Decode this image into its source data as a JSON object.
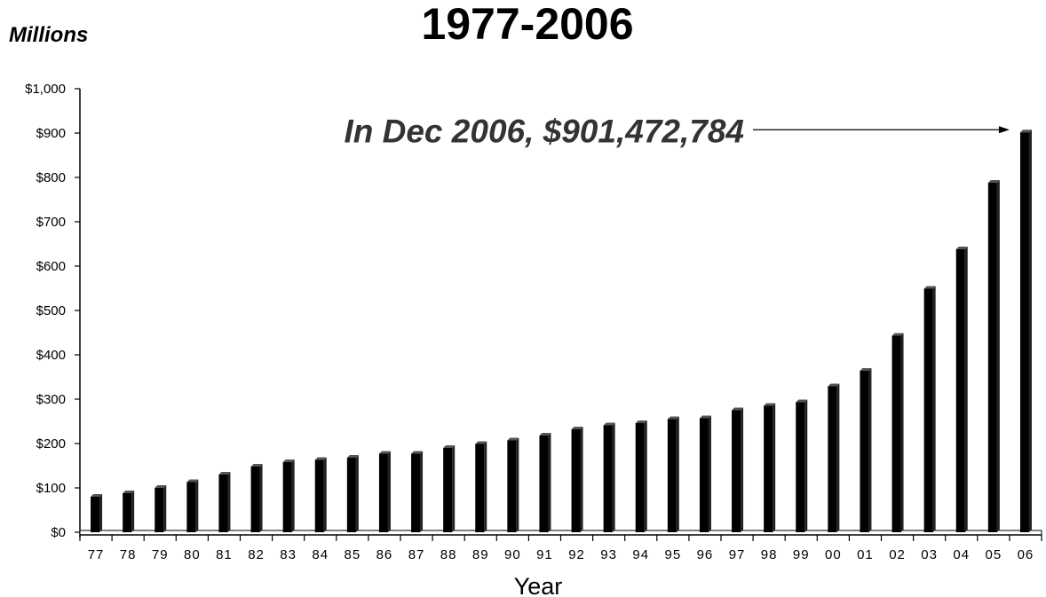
{
  "chart_data": {
    "type": "bar",
    "title": "1977-2006",
    "unit_label": "Millions",
    "xlabel": "Year",
    "ylabel": "",
    "ylim": [
      0,
      1000
    ],
    "y_ticks": [
      "$0",
      "$100",
      "$200",
      "$300",
      "$400",
      "$500",
      "$600",
      "$700",
      "$800",
      "$900",
      "$1,000"
    ],
    "categories": [
      "77",
      "78",
      "79",
      "80",
      "81",
      "82",
      "83",
      "84",
      "85",
      "86",
      "87",
      "88",
      "89",
      "90",
      "91",
      "92",
      "93",
      "94",
      "95",
      "96",
      "97",
      "98",
      "99",
      "00",
      "01",
      "02",
      "03",
      "04",
      "05",
      "06"
    ],
    "values": [
      80,
      88,
      100,
      113,
      130,
      148,
      158,
      163,
      168,
      177,
      177,
      190,
      199,
      207,
      218,
      232,
      241,
      246,
      255,
      257,
      275,
      285,
      293,
      329,
      364,
      443,
      549,
      638,
      788,
      901.472784
    ],
    "annotation": {
      "text": "In Dec 2006, $901,472,784",
      "target_category": "06"
    },
    "grid": false,
    "legend": "none",
    "bar_color": "#000000"
  }
}
